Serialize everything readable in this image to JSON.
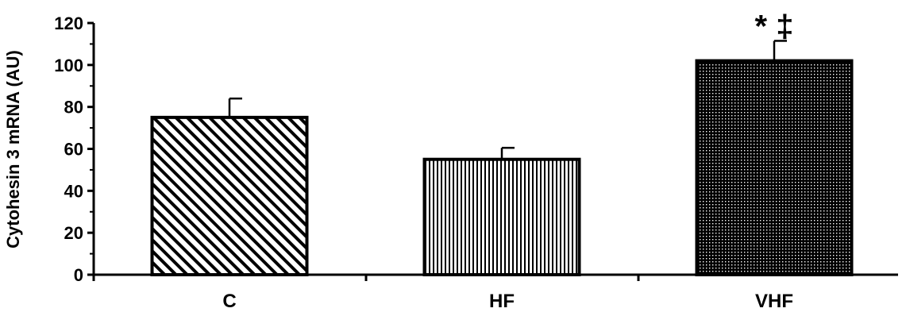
{
  "chart_data": {
    "type": "bar",
    "categories": [
      "C",
      "HF",
      "VHF"
    ],
    "values": [
      75,
      55,
      102
    ],
    "errors": [
      9,
      5.5,
      9.5
    ],
    "annotations": [
      "",
      "",
      "* ‡"
    ],
    "patterns": [
      "diagonal-hatch",
      "vertical-lines",
      "dots"
    ],
    "title": "",
    "xlabel": "",
    "ylabel": "Cytohesin 3 mRNA (AU)",
    "ylim": [
      0,
      120
    ],
    "yticks": [
      0,
      20,
      40,
      60,
      80,
      100,
      120
    ],
    "grid": false,
    "legend": "none"
  }
}
